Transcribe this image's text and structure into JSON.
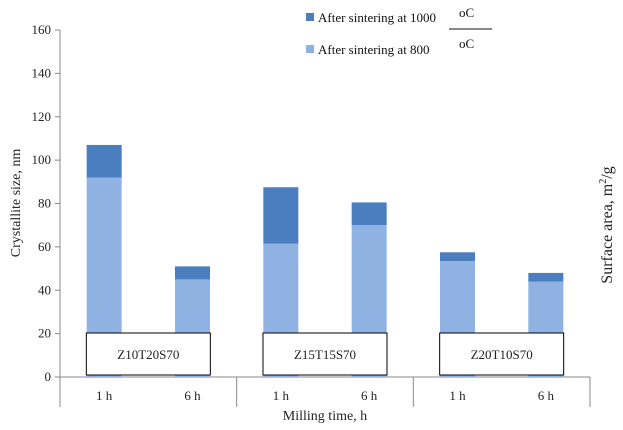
{
  "chart_data": {
    "type": "bar",
    "stacked": true,
    "categories": [
      "1 h",
      "6 h",
      "1 h",
      "6 h",
      "1 h",
      "6 h"
    ],
    "groups": [
      "Z10T20S70",
      "Z15T15S70",
      "Z20T10S70"
    ],
    "series": [
      {
        "name": "After sintering at  800",
        "color": "#8fb2e3",
        "values": [
          92,
          45,
          61.5,
          70,
          53.5,
          44
        ]
      },
      {
        "name": "After sintering at 1000",
        "color": "#4a7ebf",
        "values": [
          15,
          6,
          26,
          10.5,
          4,
          4
        ]
      }
    ],
    "legend_units": [
      "oC",
      "oC"
    ],
    "ylabel": "Crystallite size, nm",
    "xlabel": "Milling time, h",
    "y2label": {
      "base": "Surface area, m",
      "sup": "2",
      "tail": "/g"
    },
    "ylim": [
      0,
      160
    ],
    "yticks": [
      "0",
      "20",
      "40",
      "60",
      "80",
      "100",
      "120",
      "140",
      "160"
    ],
    "grid": false,
    "legend_position": "top-center"
  }
}
